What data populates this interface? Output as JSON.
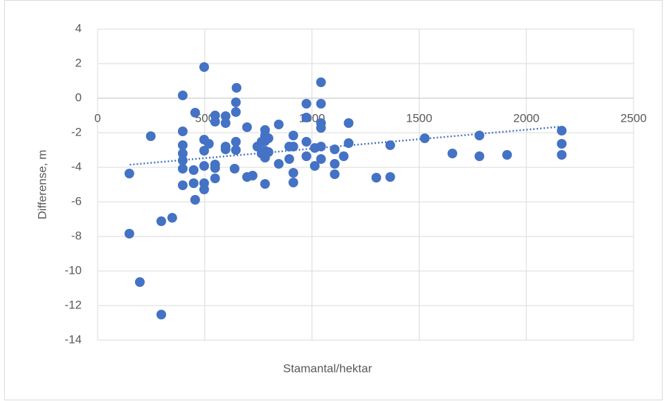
{
  "chart_data": {
    "type": "scatter",
    "x_label": "Stamantal/hektar",
    "y_label": "Differense, m",
    "xlim": [
      0,
      2500
    ],
    "xticks": [
      0,
      500,
      1000,
      1500,
      2000,
      2500
    ],
    "ylim": [
      -14,
      4
    ],
    "yticks": [
      -14,
      -12,
      -10,
      -8,
      -6,
      -4,
      -2,
      0,
      2,
      4
    ],
    "grid": true,
    "series": [
      {
        "color": "#4472c4",
        "x": [
          148,
          148,
          197,
          248,
          297,
          297,
          348,
          397,
          397,
          397,
          397,
          397,
          397,
          397,
          455,
          448,
          448,
          455,
          497,
          497,
          497,
          497,
          497,
          497,
          519,
          548,
          548,
          548,
          548,
          548,
          597,
          597,
          597,
          597,
          645,
          648,
          645,
          645,
          645,
          639,
          697,
          697,
          723,
          745,
          765,
          765,
          781,
          781,
          781,
          781,
          781,
          781,
          797,
          797,
          845,
          845,
          894,
          894,
          913,
          913,
          913,
          913,
          974,
          974,
          974,
          974,
          1013,
          1013,
          1042,
          1042,
          1042,
          1042,
          1042,
          1042,
          1106,
          1106,
          1106,
          1148,
          1171,
          1171,
          1300,
          1365,
          1365,
          1526,
          1655,
          1781,
          1781,
          1910,
          2165,
          2165,
          2165
        ],
        "values": [
          -4.36,
          -7.84,
          -10.64,
          -2.2,
          -7.12,
          -12.52,
          -6.92,
          0.16,
          -1.92,
          -2.72,
          -3.2,
          -3.6,
          -4.08,
          -5.04,
          -0.84,
          -4.16,
          -4.92,
          -5.88,
          1.8,
          -2.4,
          -3.04,
          -3.92,
          -4.92,
          -5.28,
          -2.64,
          -1.0,
          -1.36,
          -3.84,
          -4.04,
          -4.64,
          -1.04,
          -1.44,
          -2.8,
          -2.96,
          -0.24,
          0.6,
          -0.8,
          -2.52,
          -3.0,
          -4.08,
          -1.68,
          -4.56,
          -4.48,
          -2.8,
          -2.52,
          -3.2,
          -1.84,
          -2.16,
          -2.48,
          -3.04,
          -3.44,
          -4.96,
          -2.32,
          -3.12,
          -1.52,
          -3.8,
          -2.8,
          -3.52,
          -2.16,
          -2.8,
          -4.32,
          -4.88,
          -0.32,
          -1.12,
          -2.52,
          -3.36,
          -2.88,
          -3.92,
          0.92,
          -0.32,
          -1.44,
          -1.72,
          -2.8,
          -3.52,
          -2.96,
          -3.8,
          -4.4,
          -3.36,
          -1.44,
          -2.6,
          -4.6,
          -2.72,
          -4.56,
          -2.32,
          -3.2,
          -2.16,
          -3.36,
          -3.28,
          -1.88,
          -2.64,
          -3.28
        ]
      }
    ],
    "trendline": {
      "color": "#4472c4",
      "x": [
        150,
        2160
      ],
      "values": [
        -3.85,
        -1.65
      ]
    }
  }
}
